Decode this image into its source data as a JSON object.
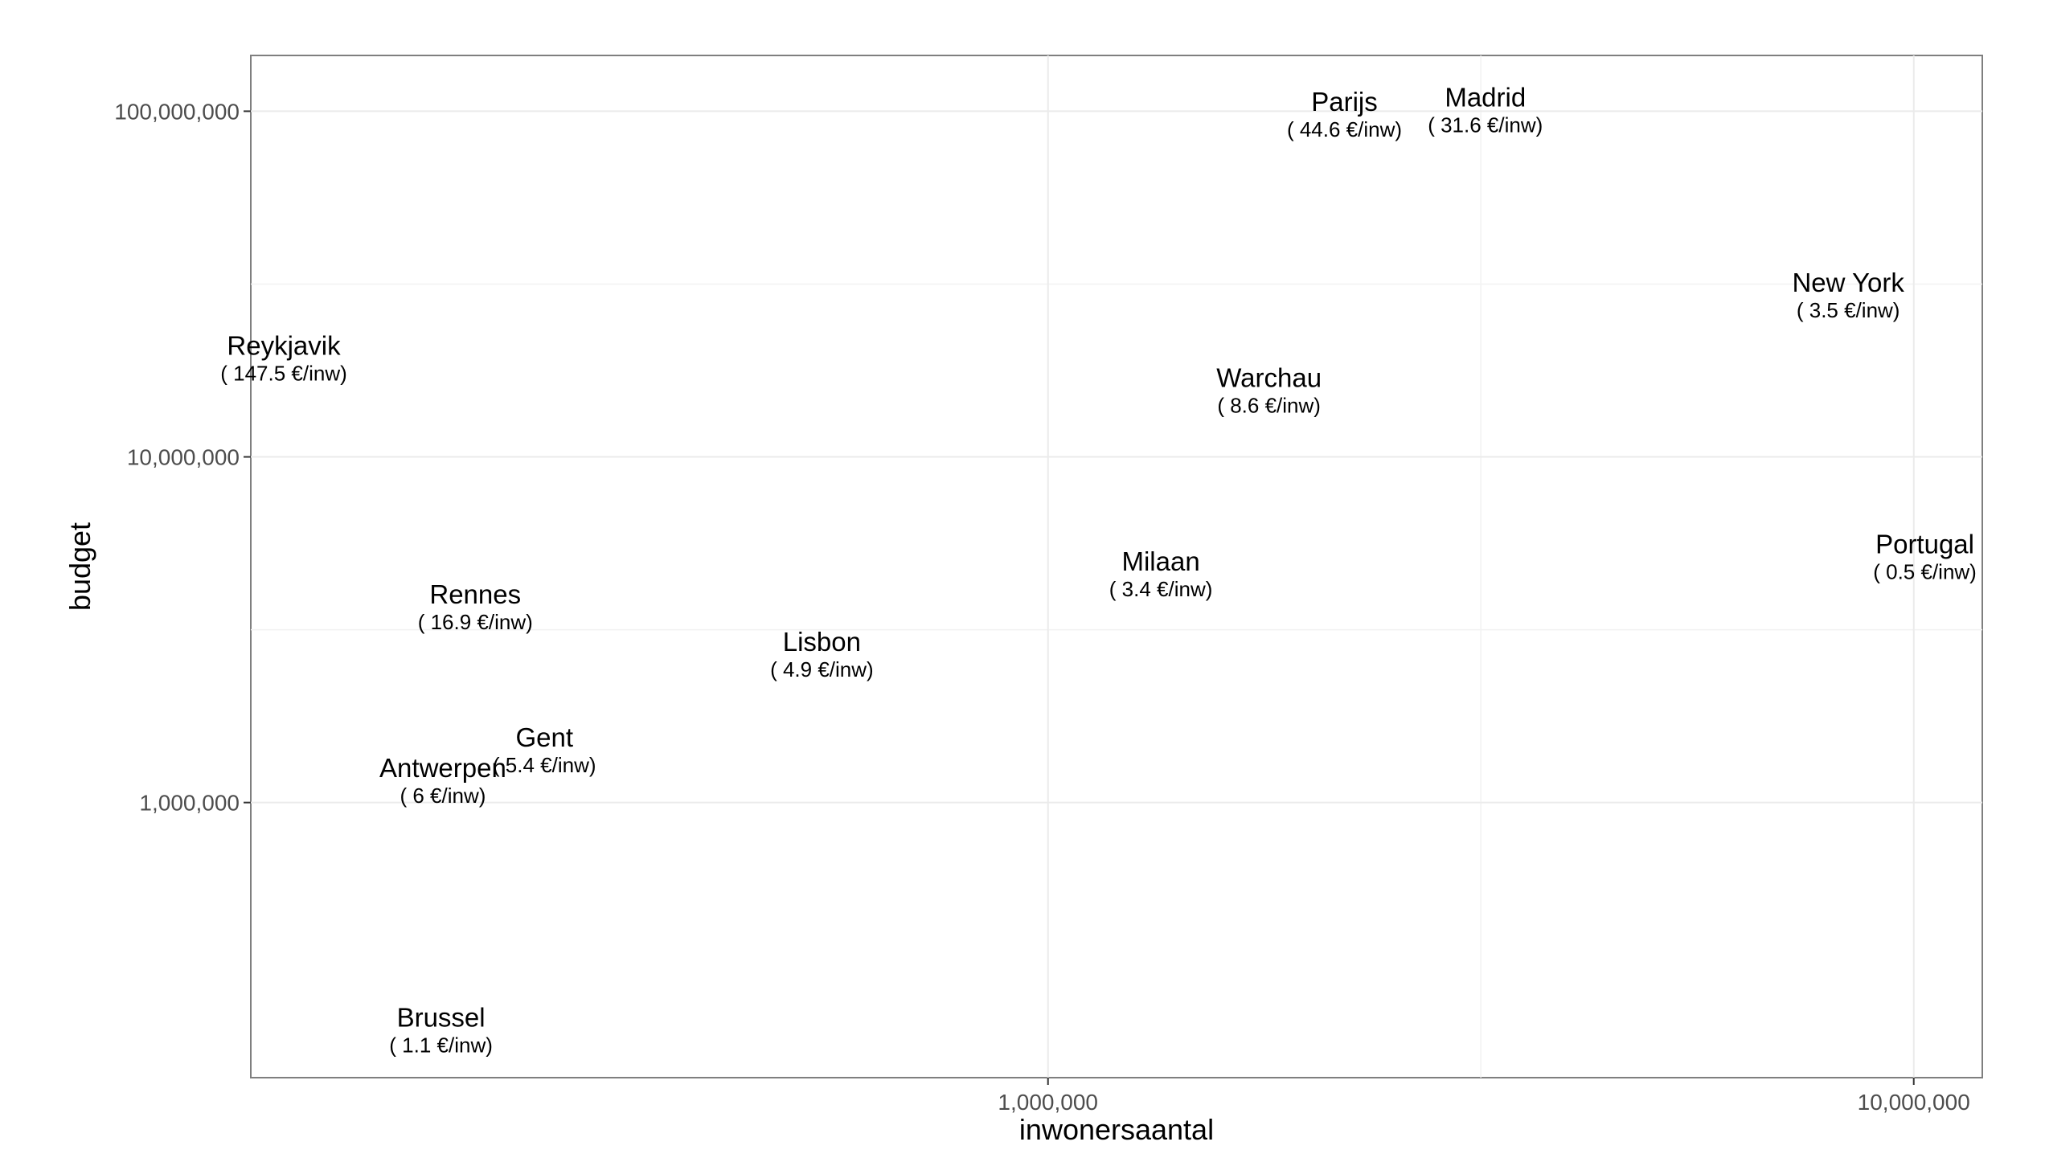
{
  "chart_data": {
    "type": "scatter",
    "title": "",
    "xlabel": "inwonersaantal",
    "ylabel": "budget",
    "x_scale": "log10",
    "y_scale": "log10",
    "xlim": [
      120000,
      12000000
    ],
    "ylim": [
      160000,
      145000000
    ],
    "x_ticks": [
      {
        "value": 1000000,
        "label": "1,000,000"
      },
      {
        "value": 10000000,
        "label": "10,000,000"
      }
    ],
    "y_ticks": [
      {
        "value": 1000000,
        "label": "1,000,000"
      },
      {
        "value": 10000000,
        "label": "10,000,000"
      },
      {
        "value": 100000000,
        "label": "100,000,000"
      }
    ],
    "grid": true,
    "legend": "none",
    "points": [
      {
        "name": "Reykjavik",
        "sub": "( 147.5 €/inw)",
        "x": 131000,
        "y": 19300000
      },
      {
        "name": "Rennes",
        "sub": "( 16.9 €/inw)",
        "x": 218000,
        "y": 3690000
      },
      {
        "name": "Gent",
        "sub": "( 5.4 €/inw)",
        "x": 262000,
        "y": 1420000
      },
      {
        "name": "Antwerpen",
        "sub": "( 6 €/inw)",
        "x": 200000,
        "y": 1160000
      },
      {
        "name": "Brussel",
        "sub": "( 1.1 €/inw)",
        "x": 199000,
        "y": 220000
      },
      {
        "name": "Lisbon",
        "sub": "( 4.9 €/inw)",
        "x": 548000,
        "y": 2690000
      },
      {
        "name": "Milaan",
        "sub": "( 3.4 €/inw)",
        "x": 1350000,
        "y": 4590000
      },
      {
        "name": "Warchau",
        "sub": "( 8.6 €/inw)",
        "x": 1800000,
        "y": 15600000
      },
      {
        "name": "Parijs",
        "sub": "( 44.6 €/inw)",
        "x": 2200000,
        "y": 98000000
      },
      {
        "name": "Madrid",
        "sub": "( 31.6 €/inw)",
        "x": 3200000,
        "y": 101000000
      },
      {
        "name": "New York",
        "sub": "( 3.5 €/inw)",
        "x": 8400000,
        "y": 29400000
      },
      {
        "name": "Portugal",
        "sub": "( 0.5 €/inw)",
        "x": 10300000,
        "y": 5150000
      }
    ]
  }
}
